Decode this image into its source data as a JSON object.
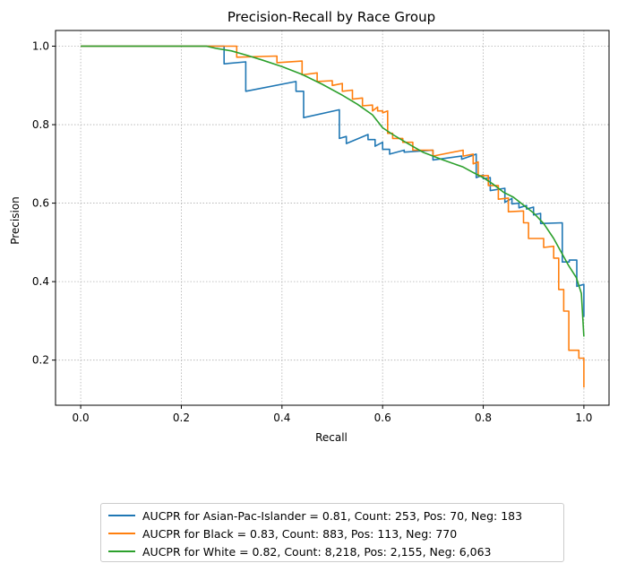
{
  "chart_data": {
    "type": "line",
    "title": "Precision-Recall by Race Group",
    "xlabel": "Recall",
    "ylabel": "Precision",
    "xlim": [
      -0.05,
      1.05
    ],
    "ylim": [
      0.085,
      1.04
    ],
    "xticks": [
      "0.0",
      "0.2",
      "0.4",
      "0.6",
      "0.8",
      "1.0"
    ],
    "yticks": [
      "0.2",
      "0.4",
      "0.6",
      "0.8",
      "1.0"
    ],
    "grid": true,
    "legend_position": "below",
    "series": [
      {
        "name": "AUCPR for Asian-Pac-Islander = 0.81, Count: 253, Pos: 70, Neg: 183",
        "color": "#1f77b4",
        "points": [
          [
            0.0,
            1.0
          ],
          [
            0.285,
            1.0
          ],
          [
            0.285,
            0.955
          ],
          [
            0.328,
            0.96
          ],
          [
            0.328,
            0.885
          ],
          [
            0.428,
            0.91
          ],
          [
            0.428,
            0.885
          ],
          [
            0.443,
            0.885
          ],
          [
            0.443,
            0.818
          ],
          [
            0.514,
            0.838
          ],
          [
            0.514,
            0.765
          ],
          [
            0.528,
            0.77
          ],
          [
            0.528,
            0.752
          ],
          [
            0.571,
            0.775
          ],
          [
            0.571,
            0.762
          ],
          [
            0.585,
            0.762
          ],
          [
            0.585,
            0.745
          ],
          [
            0.6,
            0.755
          ],
          [
            0.6,
            0.737
          ],
          [
            0.614,
            0.737
          ],
          [
            0.614,
            0.725
          ],
          [
            0.643,
            0.735
          ],
          [
            0.643,
            0.73
          ],
          [
            0.7,
            0.735
          ],
          [
            0.7,
            0.71
          ],
          [
            0.757,
            0.72
          ],
          [
            0.757,
            0.712
          ],
          [
            0.786,
            0.725
          ],
          [
            0.786,
            0.665
          ],
          [
            0.8,
            0.672
          ],
          [
            0.8,
            0.662
          ],
          [
            0.814,
            0.665
          ],
          [
            0.814,
            0.632
          ],
          [
            0.843,
            0.638
          ],
          [
            0.843,
            0.602
          ],
          [
            0.857,
            0.612
          ],
          [
            0.857,
            0.598
          ],
          [
            0.871,
            0.6
          ],
          [
            0.871,
            0.588
          ],
          [
            0.886,
            0.594
          ],
          [
            0.886,
            0.585
          ],
          [
            0.9,
            0.59
          ],
          [
            0.9,
            0.57
          ],
          [
            0.914,
            0.574
          ],
          [
            0.914,
            0.548
          ],
          [
            0.957,
            0.55
          ],
          [
            0.957,
            0.45
          ],
          [
            0.971,
            0.45
          ],
          [
            0.971,
            0.455
          ],
          [
            0.986,
            0.455
          ],
          [
            0.986,
            0.388
          ],
          [
            1.0,
            0.393
          ],
          [
            1.0,
            0.31
          ]
        ]
      },
      {
        "name": "AUCPR for Black = 0.83, Count: 883, Pos: 113, Neg: 770",
        "color": "#ff7f0e",
        "points": [
          [
            0.0,
            1.0
          ],
          [
            0.31,
            1.0
          ],
          [
            0.31,
            0.972
          ],
          [
            0.39,
            0.975
          ],
          [
            0.39,
            0.958
          ],
          [
            0.44,
            0.962
          ],
          [
            0.44,
            0.927
          ],
          [
            0.47,
            0.932
          ],
          [
            0.47,
            0.91
          ],
          [
            0.5,
            0.912
          ],
          [
            0.5,
            0.9
          ],
          [
            0.52,
            0.905
          ],
          [
            0.52,
            0.885
          ],
          [
            0.54,
            0.888
          ],
          [
            0.54,
            0.865
          ],
          [
            0.56,
            0.868
          ],
          [
            0.56,
            0.848
          ],
          [
            0.58,
            0.85
          ],
          [
            0.58,
            0.835
          ],
          [
            0.59,
            0.845
          ],
          [
            0.59,
            0.835
          ],
          [
            0.6,
            0.835
          ],
          [
            0.6,
            0.83
          ],
          [
            0.61,
            0.835
          ],
          [
            0.61,
            0.778
          ],
          [
            0.62,
            0.778
          ],
          [
            0.62,
            0.765
          ],
          [
            0.64,
            0.765
          ],
          [
            0.64,
            0.755
          ],
          [
            0.66,
            0.755
          ],
          [
            0.66,
            0.735
          ],
          [
            0.7,
            0.735
          ],
          [
            0.7,
            0.72
          ],
          [
            0.76,
            0.735
          ],
          [
            0.76,
            0.72
          ],
          [
            0.78,
            0.725
          ],
          [
            0.78,
            0.7
          ],
          [
            0.79,
            0.705
          ],
          [
            0.79,
            0.67
          ],
          [
            0.81,
            0.67
          ],
          [
            0.81,
            0.645
          ],
          [
            0.83,
            0.645
          ],
          [
            0.83,
            0.61
          ],
          [
            0.85,
            0.613
          ],
          [
            0.85,
            0.578
          ],
          [
            0.88,
            0.58
          ],
          [
            0.88,
            0.55
          ],
          [
            0.89,
            0.55
          ],
          [
            0.89,
            0.51
          ],
          [
            0.92,
            0.51
          ],
          [
            0.92,
            0.487
          ],
          [
            0.94,
            0.49
          ],
          [
            0.94,
            0.46
          ],
          [
            0.95,
            0.46
          ],
          [
            0.95,
            0.38
          ],
          [
            0.96,
            0.38
          ],
          [
            0.96,
            0.325
          ],
          [
            0.97,
            0.325
          ],
          [
            0.97,
            0.225
          ],
          [
            0.99,
            0.225
          ],
          [
            0.99,
            0.205
          ],
          [
            1.0,
            0.205
          ],
          [
            1.0,
            0.13
          ]
        ]
      },
      {
        "name": "AUCPR for White = 0.82, Count: 8,218, Pos: 2,155, Neg: 6,063",
        "color": "#2ca02c",
        "points": [
          [
            0.0,
            1.0
          ],
          [
            0.25,
            1.0
          ],
          [
            0.27,
            0.994
          ],
          [
            0.3,
            0.988
          ],
          [
            0.33,
            0.977
          ],
          [
            0.36,
            0.965
          ],
          [
            0.4,
            0.948
          ],
          [
            0.44,
            0.928
          ],
          [
            0.48,
            0.903
          ],
          [
            0.52,
            0.875
          ],
          [
            0.55,
            0.852
          ],
          [
            0.58,
            0.825
          ],
          [
            0.6,
            0.792
          ],
          [
            0.62,
            0.775
          ],
          [
            0.65,
            0.752
          ],
          [
            0.68,
            0.73
          ],
          [
            0.72,
            0.71
          ],
          [
            0.76,
            0.692
          ],
          [
            0.78,
            0.678
          ],
          [
            0.8,
            0.665
          ],
          [
            0.82,
            0.648
          ],
          [
            0.84,
            0.628
          ],
          [
            0.86,
            0.615
          ],
          [
            0.88,
            0.595
          ],
          [
            0.9,
            0.575
          ],
          [
            0.92,
            0.548
          ],
          [
            0.94,
            0.51
          ],
          [
            0.955,
            0.475
          ],
          [
            0.97,
            0.44
          ],
          [
            0.985,
            0.41
          ],
          [
            0.995,
            0.37
          ],
          [
            1.0,
            0.26
          ]
        ]
      }
    ]
  }
}
